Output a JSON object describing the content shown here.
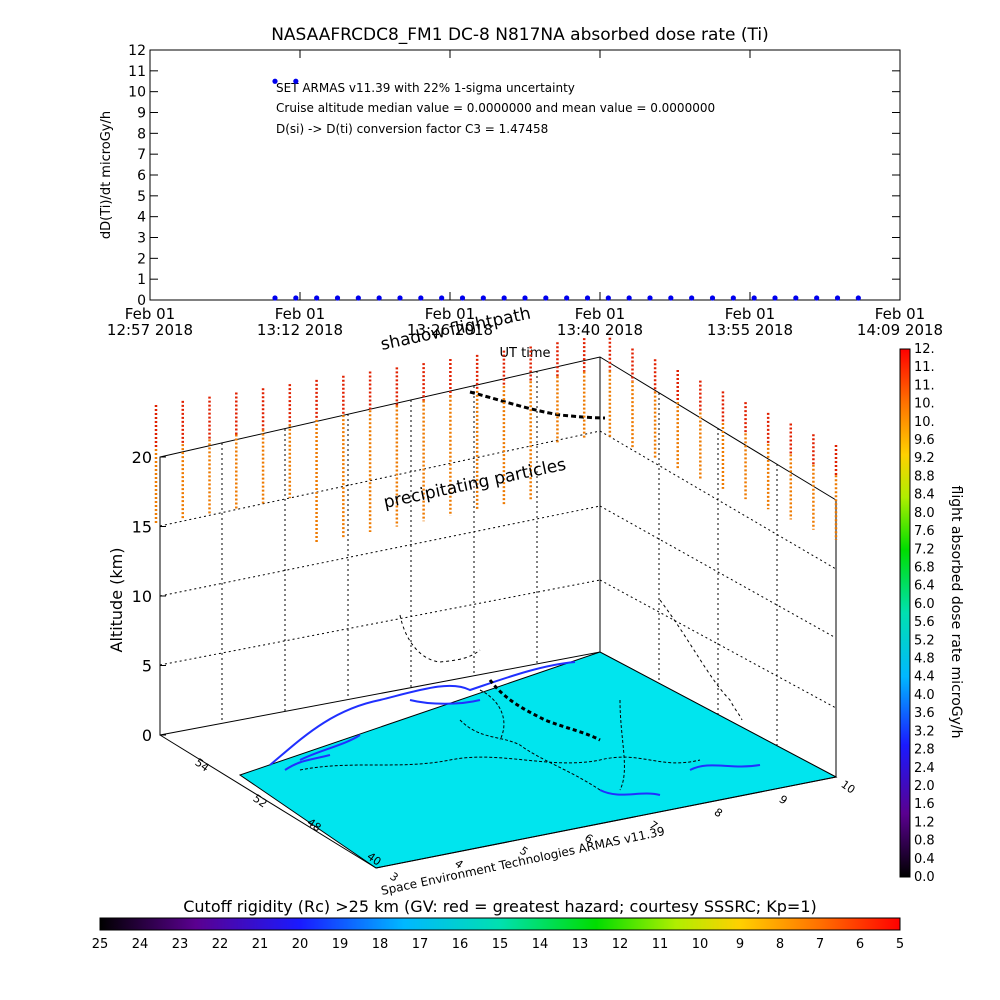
{
  "chart_data": [
    {
      "type": "scatter",
      "title": "NASAAFRCDC8_FM1 DC-8   N817NA absorbed dose rate (Ti)",
      "ylabel": "dD(Ti)/dt microGy/h",
      "xlabel": "UT time",
      "ylim": [
        0,
        12
      ],
      "yticks": [
        "0",
        "1",
        "2",
        "3",
        "4",
        "5",
        "6",
        "7",
        "8",
        "9",
        "10",
        "11",
        "12"
      ],
      "xticks": [
        {
          "top": "Feb 01",
          "bottom": "12:57 2018"
        },
        {
          "top": "Feb 01",
          "bottom": "13:12 2018"
        },
        {
          "top": "Feb 01",
          "bottom": "13:26 2018"
        },
        {
          "top": "Feb 01",
          "bottom": "13:40 2018"
        },
        {
          "top": "Feb 01",
          "bottom": "13:55 2018"
        },
        {
          "top": "Feb 01",
          "bottom": "14:09 2018"
        }
      ],
      "xlim": [
        "12:57",
        "14:09"
      ],
      "annotations": [
        "SET ARMAS v11.39 with 22% 1-sigma uncertainty",
        "Cruise altitude median value = 0.0000000 and mean value = 0.0000000",
        "D(si) -> D(ti) conversion factor C3 = 1.47458"
      ],
      "series": [
        {
          "color": "#0000ee",
          "x": [
            "13:09",
            "13:11",
            "13:09",
            "13:11",
            "13:13",
            "13:15",
            "13:17",
            "13:19",
            "13:21",
            "13:23",
            "13:25",
            "13:27",
            "13:29",
            "13:31",
            "13:33",
            "13:35",
            "13:37",
            "13:39",
            "13:41",
            "13:43",
            "13:45",
            "13:47",
            "13:49",
            "13:51",
            "13:53",
            "13:55",
            "13:57",
            "13:59",
            "14:01",
            "14:03",
            "14:05"
          ],
          "y": [
            10.5,
            10.5,
            0,
            0,
            0,
            0,
            0,
            0,
            0,
            0,
            0,
            0,
            0,
            0,
            0,
            0,
            0,
            0,
            0,
            0,
            0,
            0,
            0,
            0,
            0,
            0,
            0,
            0,
            0,
            0,
            0
          ]
        }
      ]
    },
    {
      "type": "scatter",
      "subtype": "3d-flightpath",
      "zlabel": "Altitude (km)",
      "zticks": [
        "0",
        "5",
        "10",
        "15",
        "20"
      ],
      "zlim": [
        0,
        20
      ],
      "lat_ticks": [
        "40",
        "48",
        "52",
        "54"
      ],
      "lon_ticks": [
        "3",
        "4",
        "5",
        "6",
        "7",
        "8",
        "9",
        "10"
      ],
      "labels": [
        "shadow flightpath",
        "precipitating particles"
      ],
      "credit": "Space Environment Technologies ARMAS v11.39",
      "surface_color": "#00e5ee",
      "colorbar_label": "flight absorbed dose rate microGy/h",
      "colorbar_ticks": [
        "0.0",
        "0.4",
        "0.8",
        "1.2",
        "1.6",
        "2.0",
        "2.4",
        "2.8",
        "3.2",
        "3.6",
        "4.0",
        "4.4",
        "4.8",
        "5.2",
        "5.6",
        "6.0",
        "6.4",
        "6.8",
        "7.2",
        "7.6",
        "8.0",
        "8.4",
        "8.8",
        "9.2",
        "9.6",
        "10.",
        "10.",
        "11.",
        "11.",
        "12."
      ]
    },
    {
      "type": "heatmap",
      "subtype": "colorbar",
      "title": "Cutoff rigidity (Rc) >25 km (GV: red = greatest hazard; courtesy SSSRC; Kp=1)",
      "ticks": [
        "25",
        "24",
        "23",
        "22",
        "21",
        "20",
        "19",
        "18",
        "17",
        "16",
        "15",
        "14",
        "13",
        "12",
        "11",
        "10",
        "9",
        "8",
        "7",
        "6",
        "5"
      ]
    }
  ]
}
